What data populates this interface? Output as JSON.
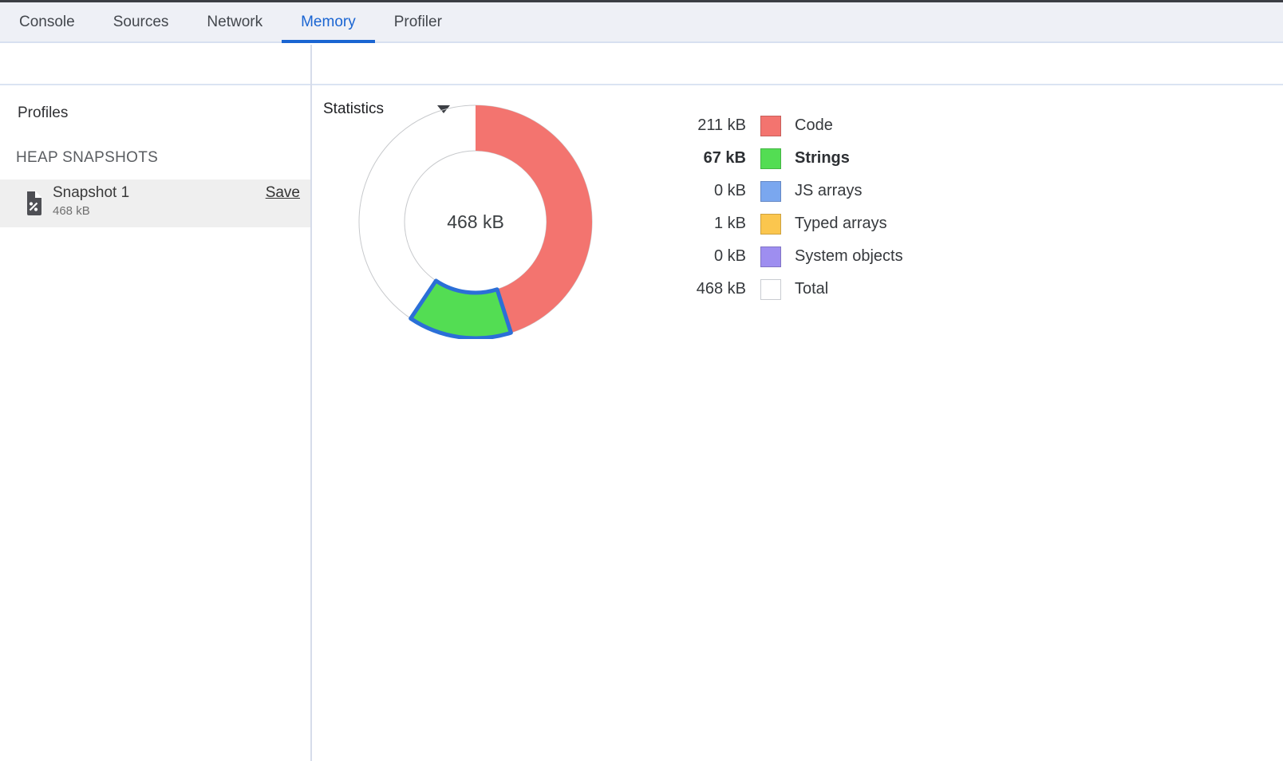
{
  "tabs": {
    "items": [
      {
        "label": "Console",
        "active": false
      },
      {
        "label": "Sources",
        "active": false
      },
      {
        "label": "Network",
        "active": false
      },
      {
        "label": "Memory",
        "active": true
      },
      {
        "label": "Profiler",
        "active": false
      }
    ]
  },
  "toolbar": {
    "record_button": "record-heap-snapshot",
    "clear_button": "clear-all-profiles",
    "view_selector_value": "Statistics"
  },
  "sidebar": {
    "profiles_title": "Profiles",
    "section_title": "HEAP SNAPSHOTS",
    "snapshots": [
      {
        "name": "Snapshot 1",
        "size": "468 kB",
        "action_label": "Save",
        "selected": true
      }
    ]
  },
  "chart_data": {
    "type": "pie",
    "title": "Heap snapshot statistics donut",
    "center_label": "468 kB",
    "unit": "kB",
    "total_kb": 468,
    "legend_position": "right",
    "selection_color": "#2b6fd7",
    "outline_color": "#c7c9cc",
    "series": [
      {
        "name": "Code",
        "value_kb": 211,
        "label": "211 kB",
        "color": "#f3746f",
        "selected": false,
        "is_total": false
      },
      {
        "name": "Strings",
        "value_kb": 67,
        "label": "67 kB",
        "color": "#53dd53",
        "selected": true,
        "is_total": false
      },
      {
        "name": "JS arrays",
        "value_kb": 0,
        "label": "0 kB",
        "color": "#7aa7ef",
        "selected": false,
        "is_total": false
      },
      {
        "name": "Typed arrays",
        "value_kb": 1,
        "label": "1 kB",
        "color": "#fbc64e",
        "selected": false,
        "is_total": false
      },
      {
        "name": "System objects",
        "value_kb": 0,
        "label": "0 kB",
        "color": "#9e8ef0",
        "selected": false,
        "is_total": false
      },
      {
        "name": "Total",
        "value_kb": 468,
        "label": "468 kB",
        "color": "#ffffff",
        "selected": false,
        "is_total": true
      }
    ]
  },
  "colors": {
    "accent_blue": "#1a65d2",
    "tab_bar_bg": "#eef0f6",
    "divider": "#d6dcea",
    "selected_row_bg": "#efefef",
    "icon_gray": "#47484a"
  }
}
